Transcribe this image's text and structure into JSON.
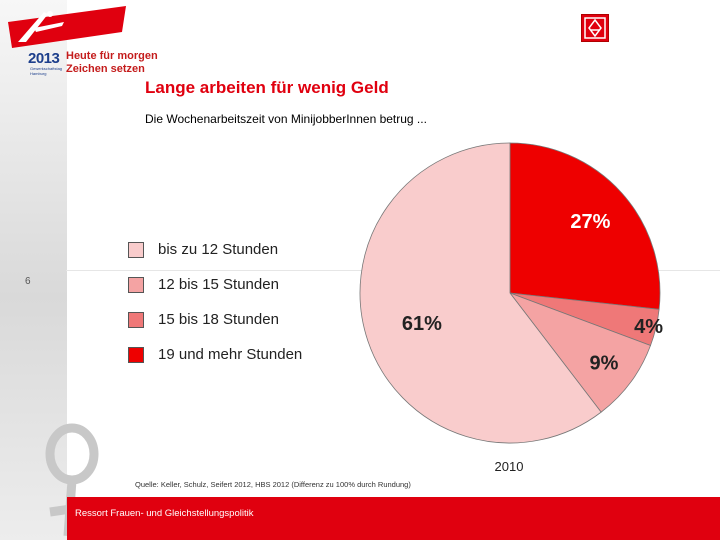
{
  "header": {
    "year": "2013",
    "year_subtext": "Gewerkschaftstag Hamburg",
    "slogan_line1": "Heute für morgen",
    "slogan_line2": "Zeichen setzen"
  },
  "slide": {
    "title": "Lange arbeiten für wenig Geld",
    "subtitle": "Die Wochenarbeitszeit von MinijobberInnen betrug ...",
    "slide_number": "6",
    "source": "Quelle: Keller, Schulz, Seifert 2012, HBS 2012 (Differenz zu 100% durch Rundung)",
    "footer": "Ressort Frauen- und Gleichstellungspolitik"
  },
  "legend": [
    {
      "label": "bis zu 12 Stunden",
      "color": "#f9cccc"
    },
    {
      "label": "12 bis 15 Stunden",
      "color": "#f4a3a3"
    },
    {
      "label": "15 bis 18 Stunden",
      "color": "#ef7878"
    },
    {
      "label": "19 und mehr Stunden",
      "color": "#ee0000"
    }
  ],
  "chart_data": {
    "type": "pie",
    "title": "Die Wochenarbeitszeit von MinijobberInnen betrug ...",
    "caption": "2010",
    "slices": [
      {
        "label": "19 und mehr Stunden",
        "value": 27,
        "display": "27%",
        "color": "#ee0000"
      },
      {
        "label": "15 bis 18 Stunden",
        "value": 4,
        "display": "4%",
        "color": "#ef7878"
      },
      {
        "label": "12 bis 15 Stunden",
        "value": 9,
        "display": "9%",
        "color": "#f4a3a3"
      },
      {
        "label": "bis zu 12 Stunden",
        "value": 61,
        "display": "61%",
        "color": "#f9cccc"
      }
    ]
  },
  "colors": {
    "brand_red": "#e0000f",
    "year_blue": "#1d3f8c"
  }
}
